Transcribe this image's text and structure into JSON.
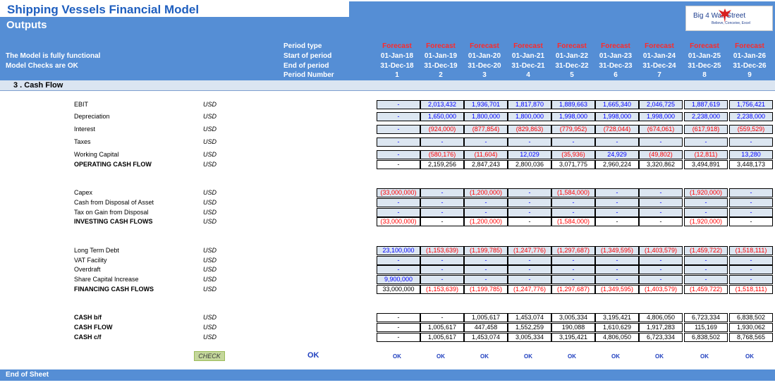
{
  "header": {
    "title": "Shipping Vessels Financial Model",
    "subtitle": "Outputs",
    "status_lines": [
      "The Model is fully functional",
      "Model Checks are OK"
    ],
    "logo": {
      "text": "Big 4 Wall Street",
      "tagline": "Believe, Conceive, Excel",
      "icon": "eagle-icon"
    },
    "row_labels": [
      "Period type",
      "Start of period",
      "End of period",
      "Period Number"
    ]
  },
  "periods": [
    {
      "type": "Forecast",
      "start": "01-Jan-18",
      "end": "31-Dec-18",
      "number": "1"
    },
    {
      "type": "Forecast",
      "start": "01-Jan-19",
      "end": "31-Dec-19",
      "number": "2"
    },
    {
      "type": "Forecast",
      "start": "01-Jan-20",
      "end": "31-Dec-20",
      "number": "3"
    },
    {
      "type": "Forecast",
      "start": "01-Jan-21",
      "end": "31-Dec-21",
      "number": "4"
    },
    {
      "type": "Forecast",
      "start": "01-Jan-22",
      "end": "31-Dec-22",
      "number": "5"
    },
    {
      "type": "Forecast",
      "start": "01-Jan-23",
      "end": "31-Dec-23",
      "number": "6"
    },
    {
      "type": "Forecast",
      "start": "01-Jan-24",
      "end": "31-Dec-24",
      "number": "7"
    },
    {
      "type": "Forecast",
      "start": "01-Jan-25",
      "end": "31-Dec-25",
      "number": "8"
    },
    {
      "type": "Forecast",
      "start": "01-Jan-26",
      "end": "31-Dec-26",
      "number": "9"
    }
  ],
  "section": {
    "title": "3 . Cash Flow"
  },
  "rows": [
    {
      "label": "EBIT",
      "unit": "USD",
      "bold": false,
      "style": "input",
      "values": [
        "-",
        "2,013,432",
        "1,936,701",
        "1,817,870",
        "1,889,663",
        "1,665,340",
        "2,046,725",
        "1,887,619",
        "1,756,421"
      ]
    },
    {
      "label": "Depreciation",
      "unit": "USD",
      "bold": false,
      "style": "input",
      "values": [
        "-",
        "1,650,000",
        "1,800,000",
        "1,800,000",
        "1,998,000",
        "1,998,000",
        "1,998,000",
        "2,238,000",
        "2,238,000"
      ]
    },
    {
      "label": "Interest",
      "unit": "USD",
      "bold": false,
      "style": "input",
      "values": [
        "-",
        "(924,000)",
        "(877,854)",
        "(829,863)",
        "(779,952)",
        "(728,044)",
        "(674,061)",
        "(617,918)",
        "(559,529)"
      ]
    },
    {
      "label": "Taxes",
      "unit": "USD",
      "bold": false,
      "style": "input",
      "values": [
        "-",
        "-",
        "-",
        "-",
        "-",
        "-",
        "-",
        "-",
        "-"
      ]
    },
    {
      "label": "Working Capital",
      "unit": "USD",
      "bold": false,
      "style": "input",
      "values": [
        "-",
        "(580,176)",
        "(11,604)",
        "12,029",
        "(35,936)",
        "24,929",
        "(49,802)",
        "(12,811)",
        "13,280"
      ]
    },
    {
      "label": "OPERATING CASH FLOW",
      "unit": "USD",
      "bold": true,
      "style": "total",
      "values": [
        "-",
        "2,159,256",
        "2,847,243",
        "2,800,036",
        "3,071,775",
        "2,960,224",
        "3,320,862",
        "3,494,891",
        "3,448,173"
      ]
    },
    {
      "label": "Capex",
      "unit": "USD",
      "bold": false,
      "style": "input",
      "values": [
        "(33,000,000)",
        "-",
        "(1,200,000)",
        "-",
        "(1,584,000)",
        "-",
        "-",
        "(1,920,000)",
        "-"
      ]
    },
    {
      "label": "Cash from Disposal of Asset",
      "unit": "USD",
      "bold": false,
      "style": "input",
      "values": [
        "-",
        "-",
        "-",
        "-",
        "-",
        "-",
        "-",
        "-",
        "-"
      ]
    },
    {
      "label": "Tax on Gain from Disposal",
      "unit": "USD",
      "bold": false,
      "style": "input",
      "values": [
        "-",
        "-",
        "-",
        "-",
        "-",
        "-",
        "-",
        "-",
        "-"
      ]
    },
    {
      "label": "INVESTING CASH FLOWS",
      "unit": "USD",
      "bold": true,
      "style": "total",
      "values": [
        "(33,000,000)",
        "-",
        "(1,200,000)",
        "-",
        "(1,584,000)",
        "-",
        "-",
        "(1,920,000)",
        "-"
      ]
    },
    {
      "label": "Long Term Debt",
      "unit": "USD",
      "bold": false,
      "style": "input",
      "values": [
        "23,100,000",
        "(1,153,639)",
        "(1,199,785)",
        "(1,247,776)",
        "(1,297,687)",
        "(1,349,595)",
        "(1,403,579)",
        "(1,459,722)",
        "(1,518,111)"
      ]
    },
    {
      "label": "VAT Facility",
      "unit": "USD",
      "bold": false,
      "style": "input",
      "values": [
        "-",
        "-",
        "-",
        "-",
        "-",
        "-",
        "-",
        "-",
        "-"
      ]
    },
    {
      "label": "Overdraft",
      "unit": "USD",
      "bold": false,
      "style": "input",
      "values": [
        "-",
        "-",
        "-",
        "-",
        "-",
        "-",
        "-",
        "-",
        "-"
      ]
    },
    {
      "label": "Share Capital Increase",
      "unit": "USD",
      "bold": false,
      "style": "input",
      "values": [
        "9,900,000",
        "-",
        "-",
        "-",
        "-",
        "-",
        "-",
        "-",
        "-"
      ]
    },
    {
      "label": "FINANCING CASH FLOWS",
      "unit": "USD",
      "bold": true,
      "style": "total",
      "values": [
        "33,000,000",
        "(1,153,639)",
        "(1,199,785)",
        "(1,247,776)",
        "(1,297,687)",
        "(1,349,595)",
        "(1,403,579)",
        "(1,459,722)",
        "(1,518,111)"
      ]
    },
    {
      "label": "CASH b/f",
      "unit": "USD",
      "bold": true,
      "style": "total",
      "values": [
        "-",
        "-",
        "1,005,617",
        "1,453,074",
        "3,005,334",
        "3,195,421",
        "4,806,050",
        "6,723,334",
        "6,838,502"
      ]
    },
    {
      "label": "CASH FLOW",
      "unit": "USD",
      "bold": true,
      "style": "total",
      "values": [
        "-",
        "1,005,617",
        "447,458",
        "1,552,259",
        "190,088",
        "1,610,629",
        "1,917,283",
        "115,169",
        "1,930,062"
      ]
    },
    {
      "label": "CASH c/f",
      "unit": "USD",
      "bold": true,
      "style": "total",
      "values": [
        "-",
        "1,005,617",
        "1,453,074",
        "3,005,334",
        "3,195,421",
        "4,806,050",
        "6,723,334",
        "6,838,502",
        "8,768,565"
      ]
    }
  ],
  "check": {
    "button_label": "CHECK",
    "overall": "OK",
    "per_period": [
      "OK",
      "OK",
      "OK",
      "OK",
      "OK",
      "OK",
      "OK",
      "OK",
      "OK"
    ]
  },
  "footer": {
    "text": "End of Sheet"
  },
  "colors": {
    "header_blue": "#558ed5",
    "input_cell": "#dce6f1",
    "negative": "#ff0000",
    "input_text": "#0000ff",
    "forecast_label": "#ff2a2a",
    "check_button": "#c4d79b"
  }
}
